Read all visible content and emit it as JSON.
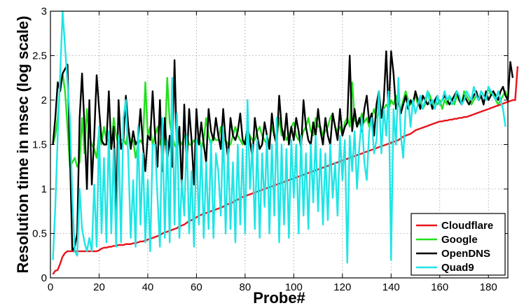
{
  "chart_data": {
    "type": "line",
    "title": "",
    "xlabel": "Probe#",
    "ylabel": "Resolution time in msec (log scale)",
    "xlim": [
      0,
      188
    ],
    "ylim": [
      0,
      3
    ],
    "x_ticks": [
      0,
      20,
      40,
      60,
      80,
      100,
      120,
      140,
      160,
      180
    ],
    "y_ticks": [
      0,
      0.5,
      1,
      1.5,
      2,
      2.5,
      3
    ],
    "y_tick_labels": [
      "0",
      "0.5",
      "1",
      "1.5",
      "2",
      "2.5",
      "3"
    ],
    "grid": true,
    "legend_position": "bottom-right",
    "series": [
      {
        "name": "Cloudflare",
        "color": "#e8141b",
        "values": [
          0.04,
          0.08,
          0.09,
          0.16,
          0.24,
          0.28,
          0.3,
          0.3,
          0.3,
          0.3,
          0.3,
          0.3,
          0.3,
          0.3,
          0.3,
          0.3,
          0.3,
          0.3,
          0.3,
          0.31,
          0.33,
          0.34,
          0.34,
          0.35,
          0.35,
          0.36,
          0.36,
          0.37,
          0.37,
          0.37,
          0.38,
          0.38,
          0.38,
          0.39,
          0.39,
          0.4,
          0.41,
          0.41,
          0.42,
          0.43,
          0.44,
          0.45,
          0.46,
          0.47,
          0.48,
          0.5,
          0.51,
          0.52,
          0.53,
          0.54,
          0.55,
          0.56,
          0.58,
          0.59,
          0.6,
          0.62,
          0.64,
          0.65,
          0.67,
          0.68,
          0.7,
          0.71,
          0.72,
          0.73,
          0.74,
          0.75,
          0.76,
          0.77,
          0.78,
          0.79,
          0.8,
          0.82,
          0.83,
          0.84,
          0.85,
          0.87,
          0.88,
          0.9,
          0.91,
          0.92,
          0.93,
          0.94,
          0.95,
          0.96,
          0.97,
          0.98,
          0.99,
          1.0,
          1.01,
          1.02,
          1.03,
          1.04,
          1.05,
          1.06,
          1.07,
          1.08,
          1.09,
          1.1,
          1.11,
          1.12,
          1.13,
          1.14,
          1.15,
          1.16,
          1.17,
          1.18,
          1.19,
          1.2,
          1.21,
          1.22,
          1.23,
          1.24,
          1.25,
          1.26,
          1.27,
          1.28,
          1.29,
          1.3,
          1.31,
          1.32,
          1.33,
          1.34,
          1.35,
          1.36,
          1.37,
          1.38,
          1.39,
          1.4,
          1.41,
          1.42,
          1.43,
          1.44,
          1.45,
          1.46,
          1.47,
          1.48,
          1.49,
          1.5,
          1.51,
          1.52,
          1.53,
          1.54,
          1.55,
          1.57,
          1.59,
          1.6,
          1.61,
          1.62,
          1.64,
          1.66,
          1.67,
          1.68,
          1.69,
          1.7,
          1.71,
          1.72,
          1.73,
          1.74,
          1.75,
          1.76,
          1.76,
          1.77,
          1.77,
          1.78,
          1.78,
          1.79,
          1.79,
          1.8,
          1.8,
          1.81,
          1.81,
          1.82,
          1.83,
          1.84,
          1.85,
          1.86,
          1.87,
          1.88,
          1.89,
          1.9,
          1.91,
          1.92,
          1.93,
          1.94,
          1.95,
          1.96,
          1.97,
          1.98,
          1.99,
          2.0,
          2.0,
          2.38
        ]
      },
      {
        "name": "Google",
        "color": "#22e01c",
        "values": [
          1.5,
          1.6,
          1.8,
          2.2,
          2.3,
          2.1,
          1.7,
          1.25,
          1.3,
          1.35,
          1.25,
          1.3,
          1.8,
          1.4,
          1.9,
          1.6,
          1.5,
          1.45,
          1.35,
          1.65,
          1.5,
          1.7,
          1.55,
          1.55,
          1.45,
          1.8,
          1.6,
          1.5,
          1.55,
          1.55,
          1.5,
          1.7,
          1.5,
          1.55,
          1.35,
          1.5,
          1.55,
          1.5,
          2.2,
          1.6,
          1.7,
          1.5,
          1.6,
          1.7,
          1.5,
          1.6,
          1.5,
          2.25,
          1.75,
          1.6,
          1.5,
          1.45,
          1.55,
          1.5,
          1.6,
          1.6,
          1.5,
          1.5,
          1.55,
          1.5,
          1.6,
          1.45,
          1.55,
          1.8,
          1.6,
          1.5,
          1.6,
          1.55,
          1.55,
          1.7,
          1.55,
          1.55,
          1.5,
          1.5,
          1.6,
          1.7,
          1.6,
          1.55,
          1.5,
          1.55,
          1.65,
          1.6,
          1.55,
          1.55,
          1.65,
          1.7,
          1.6,
          1.55,
          1.5,
          1.55,
          1.7,
          1.6,
          1.6,
          1.8,
          1.6,
          1.65,
          1.55,
          1.6,
          1.7,
          1.75,
          1.6,
          1.55,
          1.55,
          1.65,
          1.7,
          1.8,
          1.65,
          1.6,
          1.8,
          1.7,
          1.7,
          1.6,
          1.65,
          1.7,
          1.8,
          1.85,
          1.7,
          1.65,
          1.7,
          1.6,
          1.75,
          1.8,
          1.7,
          2.2,
          1.8,
          1.7,
          1.75,
          1.85,
          1.75,
          1.8,
          1.7,
          1.8,
          1.9,
          1.8,
          1.85,
          1.8,
          1.9,
          1.95,
          1.9,
          2.0,
          1.95,
          2.05,
          1.95,
          1.9,
          2.0,
          2.1,
          2.0,
          1.95,
          2.0,
          2.05,
          1.95,
          2.0,
          1.9,
          1.95,
          2.1,
          2.05,
          1.95,
          2.0,
          1.95,
          2.0,
          1.9,
          2.0,
          1.95,
          2.05,
          2.0,
          1.95,
          2.05,
          2.0,
          1.95,
          2.1,
          2.05,
          2.0,
          1.95,
          2.0,
          2.05,
          2.0,
          2.1,
          2.05,
          2.0,
          2.15,
          2.05,
          2.1,
          2.0,
          1.95,
          2.0,
          2.05,
          2.1,
          2.0
        ]
      },
      {
        "name": "OpenDNS",
        "color": "#000000",
        "values": [
          1.5,
          1.8,
          2.2,
          2.1,
          2.3,
          2.35,
          2.4,
          1.4,
          0.3,
          0.35,
          0.5,
          1.8,
          2.3,
          1.7,
          1.0,
          2.0,
          1.05,
          1.6,
          2.28,
          1.9,
          1.55,
          1.5,
          1.5,
          2.1,
          1.45,
          1.7,
          0.75,
          2.0,
          1.45,
          1.55,
          2.05,
          1.7,
          1.45,
          1.65,
          1.5,
          1.55,
          1.9,
          1.5,
          1.2,
          1.6,
          1.55,
          2.1,
          1.6,
          1.25,
          2.0,
          1.2,
          1.8,
          1.3,
          1.6,
          1.25,
          2.45,
          1.4,
          1.7,
          1.0,
          1.95,
          1.25,
          1.9,
          1.55,
          1.05,
          1.9,
          1.5,
          1.75,
          1.5,
          1.3,
          1.9,
          1.65,
          1.55,
          1.8,
          1.6,
          1.45,
          1.9,
          1.55,
          1.35,
          1.8,
          1.6,
          1.55,
          1.65,
          1.85,
          1.55,
          1.5,
          1.7,
          1.55,
          1.35,
          1.8,
          1.6,
          1.45,
          1.5,
          1.75,
          1.6,
          1.45,
          1.85,
          1.6,
          1.5,
          2.05,
          1.7,
          1.55,
          1.85,
          1.5,
          1.7,
          1.55,
          1.8,
          1.65,
          1.45,
          2.0,
          1.7,
          1.55,
          1.5,
          1.75,
          1.6,
          1.9,
          1.65,
          1.5,
          1.8,
          1.6,
          1.5,
          1.85,
          1.7,
          1.55,
          1.9,
          1.6,
          1.7,
          1.75,
          2.5,
          1.65,
          1.9,
          1.7,
          1.8,
          1.65,
          1.9,
          2.05,
          1.75,
          1.85,
          1.6,
          1.95,
          2.1,
          1.8,
          2.0,
          2.55,
          1.85,
          2.55,
          2.3,
          1.9,
          2.0,
          1.85,
          1.95,
          2.05,
          1.9,
          2.0,
          1.95,
          2.1,
          2.0,
          1.9,
          2.05,
          2.0,
          1.95,
          2.0,
          1.9,
          2.0,
          2.05,
          1.95,
          2.0,
          2.05,
          2.0,
          1.95,
          2.0,
          2.05,
          2.1,
          2.0,
          1.95,
          2.05,
          2.0,
          1.95,
          2.0,
          2.05,
          2.1,
          2.0,
          2.05,
          1.95,
          2.1,
          2.0,
          2.05,
          2.1,
          2.05,
          2.0,
          2.1,
          2.15,
          2.05,
          2.0,
          2.43,
          2.25
        ]
      },
      {
        "name": "Quad9",
        "color": "#1fe5e5",
        "values": [
          0.2,
          0.8,
          1.6,
          2.3,
          3.0,
          2.6,
          2.2,
          1.8,
          0.9,
          0.3,
          0.25,
          1.0,
          0.55,
          0.4,
          0.3,
          0.45,
          0.3,
          1.05,
          0.35,
          1.7,
          0.5,
          1.35,
          0.4,
          1.65,
          0.5,
          1.45,
          0.35,
          1.6,
          0.4,
          1.8,
          2.0,
          1.35,
          0.45,
          1.1,
          0.35,
          1.7,
          0.6,
          1.4,
          0.4,
          1.1,
          0.3,
          1.5,
          1.5,
          0.9,
          0.35,
          1.8,
          0.45,
          1.55,
          0.4,
          2.25,
          0.6,
          1.85,
          0.45,
          1.1,
          0.7,
          1.6,
          0.5,
          1.2,
          0.35,
          1.55,
          0.6,
          1.5,
          0.45,
          1.3,
          0.55,
          1.55,
          0.45,
          1.4,
          1.2,
          0.7,
          1.7,
          0.5,
          1.45,
          0.55,
          1.3,
          0.4,
          1.5,
          0.6,
          1.45,
          0.5,
          2.0,
          1.0,
          1.5,
          0.55,
          1.55,
          0.45,
          1.4,
          0.8,
          1.6,
          0.5,
          1.5,
          0.7,
          1.8,
          0.4,
          1.5,
          0.6,
          1.45,
          0.45,
          1.55,
          0.9,
          1.5,
          0.5,
          1.6,
          0.7,
          1.4,
          0.55,
          1.5,
          0.85,
          1.6,
          0.75,
          1.45,
          0.6,
          1.4,
          0.65,
          1.5,
          0.9,
          1.3,
          0.7,
          1.6,
          1.1,
          1.55,
          0.17,
          1.6,
          1.2,
          1.65,
          1.0,
          1.5,
          1.8,
          1.3,
          1.1,
          1.65,
          1.8,
          1.4,
          1.55,
          2.1,
          1.4,
          1.9,
          1.6,
          2.1,
          0.2,
          1.9,
          1.5,
          2.25,
          1.6,
          1.35,
          1.9,
          2.0,
          1.7,
          2.0,
          1.85,
          1.95,
          2.05,
          1.9,
          2.0,
          2.1,
          1.95,
          2.0,
          1.9,
          2.05,
          1.95,
          2.0,
          2.1,
          2.0,
          2.05,
          1.95,
          2.0,
          2.1,
          2.05,
          1.95,
          2.0,
          2.1,
          2.05,
          2.0,
          2.15,
          2.05,
          2.0,
          2.1,
          2.05,
          2.0,
          2.15,
          2.1,
          2.05,
          2.0,
          2.1,
          2.0,
          1.9,
          1.7
        ]
      }
    ]
  }
}
